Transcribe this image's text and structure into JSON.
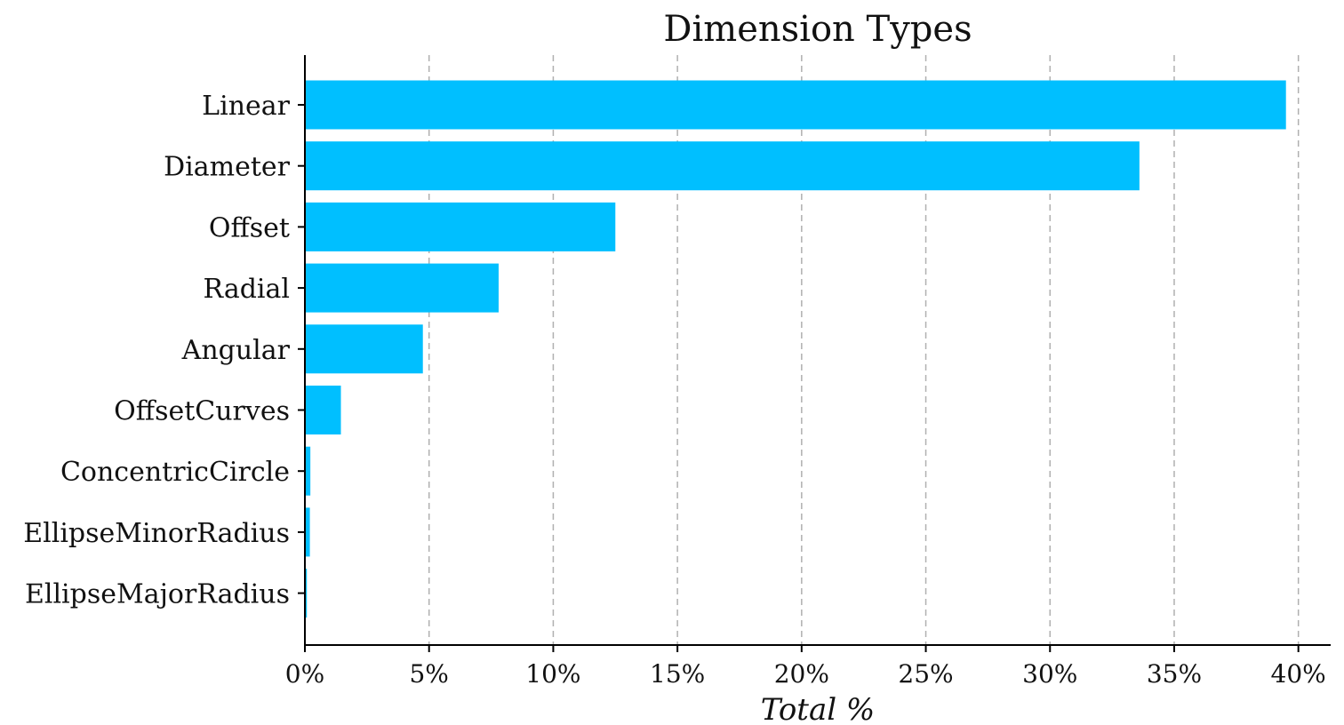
{
  "chart_data": {
    "type": "bar",
    "orientation": "horizontal",
    "title": "Dimension Types",
    "xlabel": "Total %",
    "ylabel": "",
    "categories": [
      "Linear",
      "Diameter",
      "Offset",
      "Radial",
      "Angular",
      "OffsetCurves",
      "ConcentricCircle",
      "EllipseMinorRadius",
      "EllipseMajorRadius"
    ],
    "values": [
      39.5,
      33.6,
      12.5,
      7.8,
      4.75,
      1.45,
      0.22,
      0.2,
      0.08
    ],
    "xlim": [
      0,
      41.3
    ],
    "xticks": [
      0,
      5,
      10,
      15,
      20,
      25,
      30,
      35,
      40
    ],
    "xtick_labels": [
      "0%",
      "5%",
      "10%",
      "15%",
      "20%",
      "25%",
      "30%",
      "35%",
      "40%"
    ],
    "grid": "x, dashed",
    "legend": "none",
    "bar_color": "#00bfff"
  }
}
